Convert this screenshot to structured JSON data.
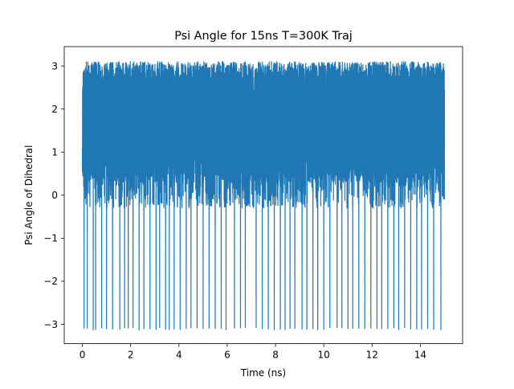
{
  "chart_data": {
    "type": "line",
    "title": "Psi Angle for 15ns T=300K Traj",
    "xlabel": "Time (ns)",
    "ylabel": "Psi Angle of Dihedral",
    "xlim": [
      -0.75,
      15.75
    ],
    "ylim": [
      -3.45,
      3.45
    ],
    "x_ticks": [
      0,
      2,
      4,
      6,
      8,
      10,
      12,
      14
    ],
    "y_ticks": [
      3,
      2,
      1,
      0,
      -1,
      -2,
      -3
    ],
    "x_tick_labels": [
      "0",
      "2",
      "4",
      "6",
      "8",
      "10",
      "12",
      "14"
    ],
    "y_tick_labels": [
      "3",
      "2",
      "1",
      "0",
      "−1",
      "−2",
      "−3"
    ],
    "grid": false,
    "series": [
      {
        "color": "#1f77b4",
        "x_range": [
          0,
          15
        ],
        "value_range": [
          -3.14,
          3.14
        ],
        "description_values": {
          "main_band": [
            0.3,
            3.1
          ],
          "excursions_low": -3.1,
          "excursion_times": [
            0.07,
            0.2,
            0.45,
            0.55,
            0.8,
            1.0,
            1.25,
            1.55,
            1.75,
            1.9,
            2.1,
            2.35,
            2.55,
            2.8,
            3.05,
            3.2,
            3.45,
            3.6,
            3.8,
            4.05,
            4.3,
            4.5,
            4.75,
            5.0,
            5.25,
            5.5,
            5.75,
            5.95,
            6.3,
            6.55,
            6.75,
            7.2,
            7.45,
            7.7,
            7.95,
            8.2,
            8.4,
            8.6,
            8.8,
            9.1,
            9.3,
            9.55,
            9.75,
            10.0,
            10.25,
            10.55,
            10.75,
            11.0,
            11.2,
            11.45,
            11.7,
            11.95,
            12.2,
            12.4,
            12.65,
            12.9,
            13.1,
            13.35,
            13.6,
            13.85,
            14.05,
            14.3,
            14.55,
            14.85
          ]
        }
      }
    ]
  }
}
